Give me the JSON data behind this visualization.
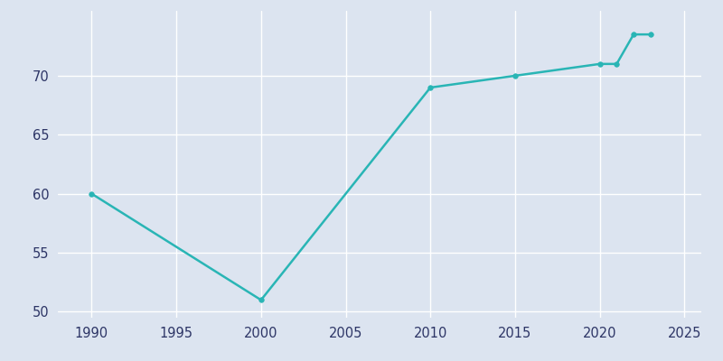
{
  "years": [
    1990,
    2000,
    2010,
    2015,
    2020,
    2021,
    2022,
    2023
  ],
  "population": [
    60,
    51,
    69,
    70,
    71,
    71,
    73.5,
    73.5
  ],
  "line_color": "#29b5b5",
  "marker": "o",
  "marker_size": 4,
  "bg_color": "#dce4f0",
  "plot_bg_color": "#dce4f0",
  "grid_color": "#ffffff",
  "xlim": [
    1988,
    2026
  ],
  "ylim": [
    49.5,
    75.5
  ],
  "yticks": [
    50,
    55,
    60,
    65,
    70
  ],
  "xticks": [
    1990,
    1995,
    2000,
    2005,
    2010,
    2015,
    2020,
    2025
  ],
  "tick_color": "#2d3566",
  "spine_color": "#c0c8d8",
  "figsize": [
    8.0,
    4.0
  ],
  "dpi": 100
}
